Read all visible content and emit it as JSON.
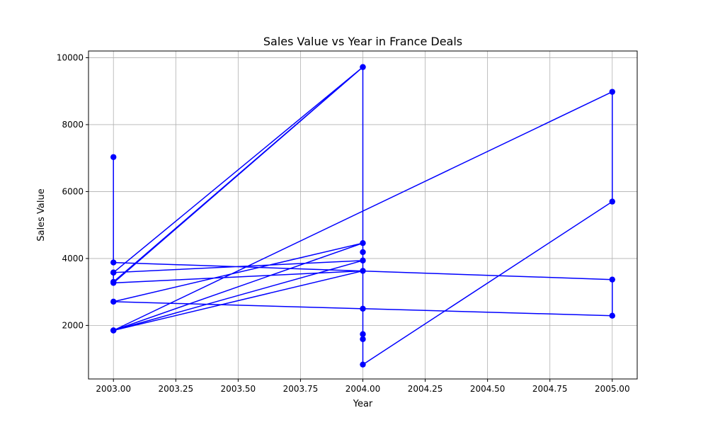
{
  "chart_data": {
    "type": "line",
    "title": "Sales Value vs Year in France Deals",
    "xlabel": "Year",
    "ylabel": "Sales Value",
    "xlim": [
      2002.9,
      2005.1
    ],
    "ylim": [
      400,
      10200
    ],
    "x_ticks": [
      2003.0,
      2003.25,
      2003.5,
      2003.75,
      2004.0,
      2004.25,
      2004.5,
      2004.75,
      2005.0
    ],
    "x_tick_labels": [
      "2003.00",
      "2003.25",
      "2003.50",
      "2003.75",
      "2004.00",
      "2004.25",
      "2004.50",
      "2004.75",
      "2005.00"
    ],
    "y_ticks": [
      2000,
      4000,
      6000,
      8000,
      10000
    ],
    "y_tick_labels": [
      "2000",
      "4000",
      "6000",
      "8000",
      "10000"
    ],
    "grid": true,
    "color": "#0000ff",
    "series": [
      {
        "x": [
          2003,
          2003,
          2005,
          2005,
          2003,
          2004,
          2003,
          2004,
          2003,
          2004,
          2004,
          2004,
          2004,
          2004,
          2004,
          2005,
          2005,
          2003,
          2004,
          2003,
          2003,
          2004,
          2003
        ],
        "y": [
          7030,
          3880,
          3370,
          2290,
          2710,
          4460,
          1850,
          3630,
          3270,
          9720,
          4190,
          1590,
          1740,
          2500,
          830,
          5700,
          8980,
          1850,
          3940,
          3580,
          3300,
          9720,
          3580
        ]
      }
    ]
  }
}
